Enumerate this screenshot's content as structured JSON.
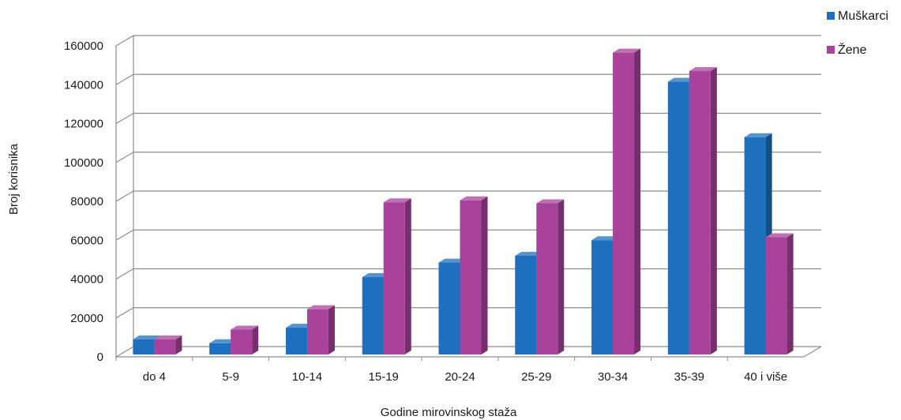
{
  "chart_data": {
    "type": "bar",
    "categories": [
      "do 4",
      "5-9",
      "10-14",
      "15-19",
      "20-24",
      "25-29",
      "30-34",
      "35-39",
      "40 i više"
    ],
    "series": [
      {
        "name": "Muškarci",
        "color": "#1f6fbf",
        "values": [
          9000,
          7000,
          15000,
          41000,
          48500,
          52000,
          60000,
          141500,
          113000
        ]
      },
      {
        "name": "Žene",
        "color": "#a8429a",
        "values": [
          9000,
          14000,
          24500,
          79500,
          80500,
          79000,
          156500,
          147000,
          61500
        ]
      }
    ],
    "yticks": [
      "0",
      "20000",
      "40000",
      "60000",
      "80000",
      "100000",
      "120000",
      "140000",
      "160000"
    ],
    "ylim": [
      0,
      160000
    ],
    "xlabel": "Godine mirovinskog staža",
    "ylabel": "Broj korisnika",
    "grid": true,
    "legend": "top-right",
    "style": "3d-column"
  }
}
